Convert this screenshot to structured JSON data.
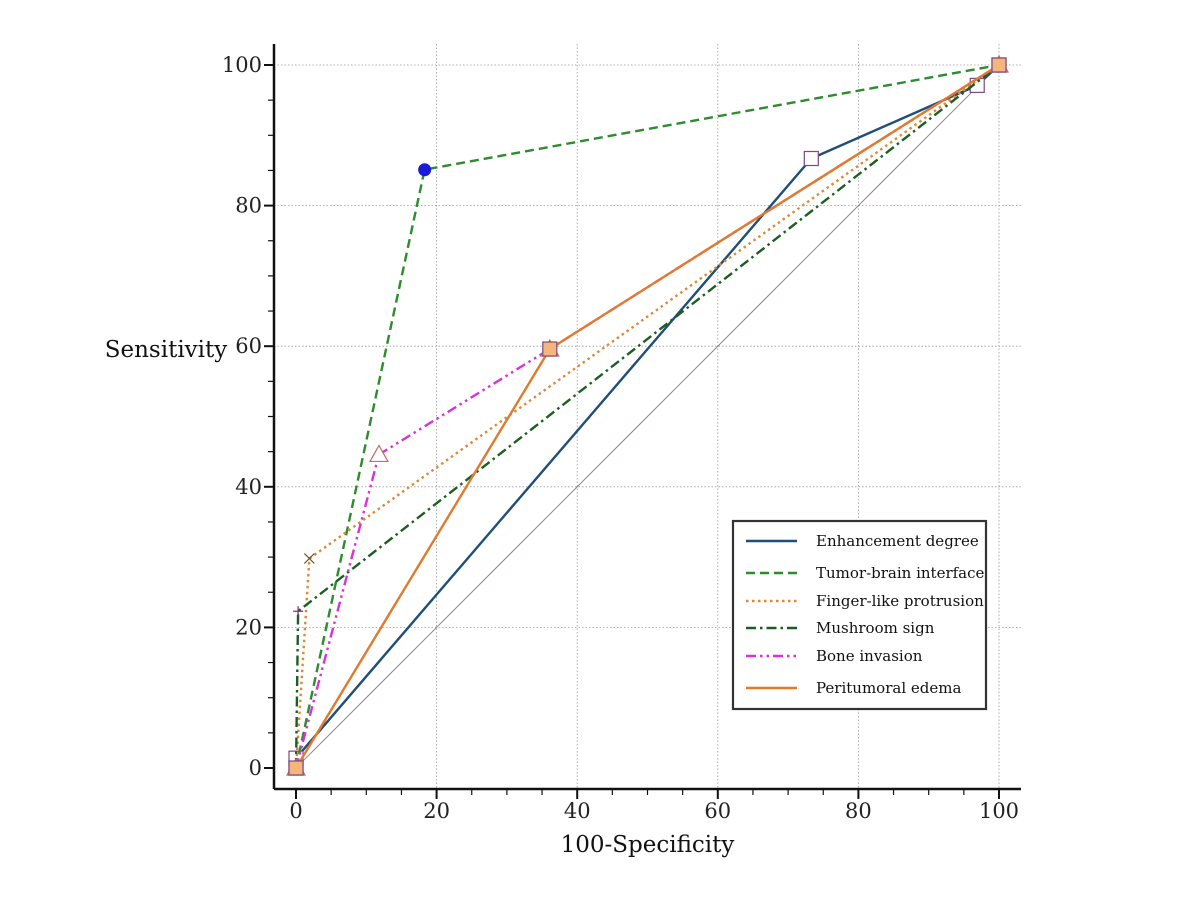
{
  "chart_data": {
    "type": "line",
    "title": "",
    "xlabel": "100-Specificity",
    "ylabel": "Sensitivity",
    "xlim": [
      0,
      100
    ],
    "ylim": [
      0,
      100
    ],
    "x_ticks": [
      "0",
      "20",
      "40",
      "60",
      "80",
      "100"
    ],
    "y_ticks": [
      "0",
      "20",
      "40",
      "60",
      "80",
      "100"
    ],
    "grid": true,
    "legend_position": "bottom-right",
    "reference_line": {
      "points": [
        [
          0,
          0
        ],
        [
          100,
          100
        ]
      ],
      "color": "#8b6b6b"
    },
    "series": [
      {
        "name": "Enhancement degree",
        "color": "#1f4e79",
        "dash": "solid",
        "marker": "square-open",
        "marker_fill": "#ffffff",
        "marker_stroke": "#7a4a80",
        "points": [
          [
            0,
            0
          ],
          [
            0,
            1.4
          ],
          [
            73.3,
            86.7
          ],
          [
            96.9,
            97.1
          ],
          [
            100,
            100
          ]
        ]
      },
      {
        "name": "Tumor-brain interface",
        "color": "#2e8b2e",
        "dash": "dashed",
        "marker": "circle",
        "marker_fill": "#1a1adc",
        "marker_stroke": "#1a1adc",
        "points": [
          [
            0,
            0
          ],
          [
            18.3,
            85.1
          ],
          [
            100,
            100
          ]
        ]
      },
      {
        "name": "Finger-like protrusion",
        "color": "#d98a3a",
        "dash": "dotted",
        "marker": "x",
        "marker_fill": "none",
        "marker_stroke": "#6b4a2a",
        "points": [
          [
            0,
            0
          ],
          [
            1.9,
            29.8
          ],
          [
            100,
            100
          ]
        ]
      },
      {
        "name": "Mushroom sign",
        "color": "#1b5e20",
        "dash": "dashdot",
        "marker": "plus",
        "marker_fill": "none",
        "marker_stroke": "#7a2a7a",
        "points": [
          [
            0,
            0
          ],
          [
            0.3,
            22.3
          ],
          [
            100,
            100
          ]
        ]
      },
      {
        "name": "Bone invasion",
        "color": "#d633d6",
        "dash": "dashdotdot",
        "marker": "triangle-open",
        "marker_fill": "#ffffff",
        "marker_stroke": "#c86a6a",
        "points": [
          [
            0,
            0
          ],
          [
            11.8,
            44.6
          ],
          [
            36.1,
            59.6
          ],
          [
            100,
            100
          ]
        ]
      },
      {
        "name": "Peritumoral edema",
        "color": "#e07b2e",
        "dash": "solid",
        "marker": "square",
        "marker_fill": "#f6b57a",
        "marker_stroke": "#7a4a80",
        "points": [
          [
            0,
            0
          ],
          [
            36.1,
            59.6
          ],
          [
            100,
            100
          ]
        ]
      }
    ]
  }
}
